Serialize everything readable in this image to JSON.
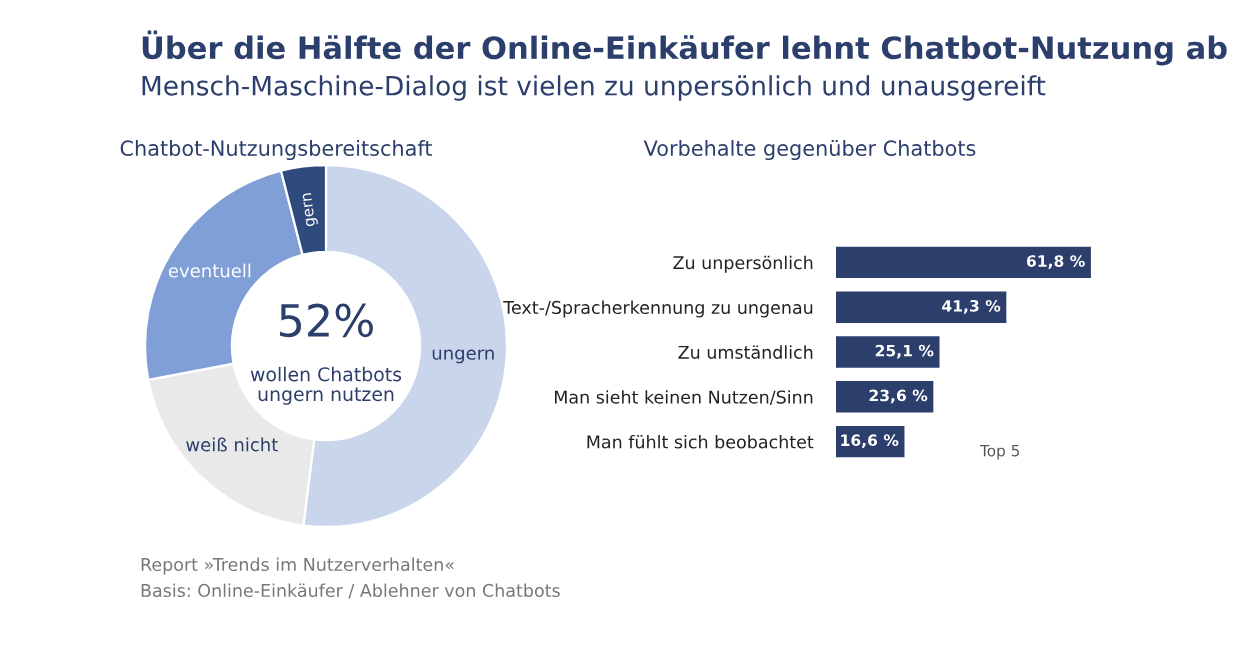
{
  "chart_data": [
    {
      "type": "other",
      "title": "Über die Hälfte der Online-Einkäufer lehnt Chatbot-Nutzung ab",
      "subtitle": "Mensch-Maschine-Dialog ist vielen zu unpersönlich und unausgereift",
      "annotations": [
        "Report »Trends im Nutzerverhalten«",
        "Basis: Online-Einkäufer / Ablehner von Chatbots"
      ]
    },
    {
      "type": "donut",
      "title": "Chatbot-Nutzungsbereitschaft",
      "categories": [
        "ungern",
        "weiß nicht",
        "eventuell",
        "gern"
      ],
      "values": [
        52,
        20,
        24,
        4
      ],
      "colors": [
        "#c9d5ea",
        "#e9e9ea",
        "#7f9fd6",
        "#2f4a7c"
      ],
      "annotations": [
        "52%",
        "wollen Chatbots\nungern nutzen"
      ]
    },
    {
      "type": "bar",
      "orientation": "horizontal",
      "title": "Vorbehalte gegenüber Chatbots",
      "categories": [
        "Zu unpersönlich",
        "Text-/Spracherkennung zu ungenau",
        "Zu umständlich",
        "Man sieht keinen Nutzen/Sinn",
        "Man fühlt sich beobachtet"
      ],
      "values": [
        61.8,
        41.3,
        25.1,
        23.6,
        16.6
      ],
      "value_labels": [
        "61,8 %",
        "41,3 %",
        "25,1 %",
        "23,6 %",
        "16,6 %"
      ],
      "color": "#2c3e6b",
      "annotations": [
        "Top 5"
      ]
    }
  ]
}
